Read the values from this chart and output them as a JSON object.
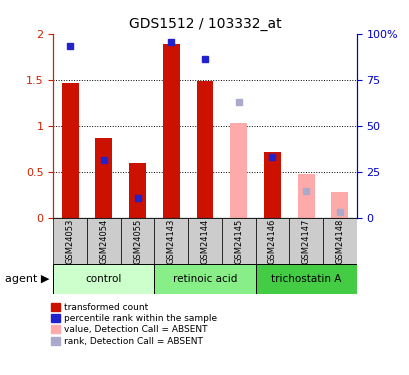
{
  "title": "GDS1512 / 103332_at",
  "samples": [
    "GSM24053",
    "GSM24054",
    "GSM24055",
    "GSM24143",
    "GSM24144",
    "GSM24145",
    "GSM24146",
    "GSM24147",
    "GSM24148"
  ],
  "red_values": [
    1.46,
    0.87,
    0.59,
    1.89,
    1.49,
    null,
    0.71,
    null,
    null
  ],
  "blue_values": [
    1.87,
    0.63,
    0.21,
    1.91,
    1.73,
    null,
    0.66,
    null,
    null
  ],
  "pink_values": [
    null,
    null,
    null,
    null,
    null,
    1.03,
    null,
    0.47,
    0.28
  ],
  "lavender_values": [
    null,
    null,
    null,
    null,
    null,
    1.26,
    null,
    0.29,
    0.06
  ],
  "ylim_left": [
    0,
    2
  ],
  "ylim_right": [
    0,
    100
  ],
  "yticks_left": [
    0,
    0.5,
    1.0,
    1.5,
    2.0
  ],
  "yticklabels_left": [
    "0",
    "0.5",
    "1",
    "1.5",
    "2"
  ],
  "yticks_right": [
    0,
    25,
    50,
    75,
    100
  ],
  "yticklabels_right": [
    "0",
    "25",
    "50",
    "75",
    "100%"
  ],
  "left_axis_color": "#cc2200",
  "right_axis_color": "#0000cc",
  "red_color": "#cc1100",
  "blue_color": "#2222cc",
  "pink_color": "#ffaaaa",
  "lavender_color": "#aaaacc",
  "group_boundaries": [
    [
      0,
      2,
      "control",
      "#ccffcc"
    ],
    [
      3,
      5,
      "retinoic acid",
      "#88ee88"
    ],
    [
      6,
      8,
      "trichostatin A",
      "#44cc44"
    ]
  ],
  "sample_box_color": "#cccccc",
  "legend_items": [
    {
      "label": "transformed count",
      "color": "#cc1100"
    },
    {
      "label": "percentile rank within the sample",
      "color": "#2222cc"
    },
    {
      "label": "value, Detection Call = ABSENT",
      "color": "#ffaaaa"
    },
    {
      "label": "rank, Detection Call = ABSENT",
      "color": "#aaaacc"
    }
  ]
}
